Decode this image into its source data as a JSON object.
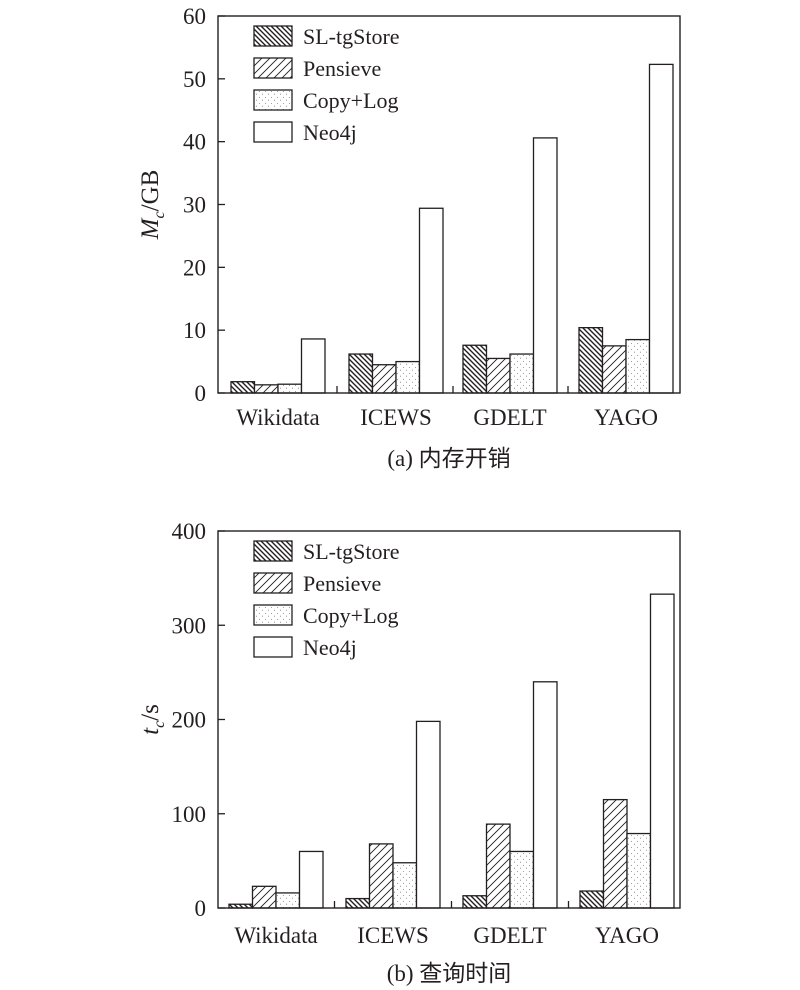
{
  "chart_data": [
    {
      "type": "bar",
      "caption": "(a) 内存开销",
      "ylabel_main": "M",
      "ylabel_sub": "c",
      "ylabel_unit": "/GB",
      "categories": [
        "Wikidata",
        "ICEWS",
        "GDELT",
        "YAGO"
      ],
      "ylim": [
        0,
        60
      ],
      "yticks": [
        0,
        10,
        20,
        30,
        40,
        50,
        60
      ],
      "legend_position": "top-left",
      "series": [
        {
          "name": "SL-tgStore",
          "pattern": "dense-hatch",
          "values": [
            1.8,
            6.2,
            7.6,
            10.4
          ]
        },
        {
          "name": "Pensieve",
          "pattern": "light-hatch",
          "values": [
            1.3,
            4.5,
            5.5,
            7.5
          ]
        },
        {
          "name": "Copy+Log",
          "pattern": "dots",
          "values": [
            1.4,
            5.0,
            6.2,
            8.5
          ]
        },
        {
          "name": "Neo4j",
          "pattern": "plain",
          "values": [
            8.6,
            29.4,
            40.6,
            52.3
          ]
        }
      ]
    },
    {
      "type": "bar",
      "caption": "(b) 查询时间",
      "ylabel_main": "t",
      "ylabel_sub": "c",
      "ylabel_unit": "/s",
      "categories": [
        "Wikidata",
        "ICEWS",
        "GDELT",
        "YAGO"
      ],
      "ylim": [
        0,
        400
      ],
      "yticks": [
        0,
        100,
        200,
        300,
        400
      ],
      "legend_position": "top-left",
      "series": [
        {
          "name": "SL-tgStore",
          "pattern": "dense-hatch",
          "values": [
            4,
            10,
            13,
            18
          ]
        },
        {
          "name": "Pensieve",
          "pattern": "light-hatch",
          "values": [
            23,
            68,
            89,
            115
          ]
        },
        {
          "name": "Copy+Log",
          "pattern": "dots",
          "values": [
            16,
            48,
            60,
            79
          ]
        },
        {
          "name": "Neo4j",
          "pattern": "plain",
          "values": [
            60,
            198,
            240,
            333
          ]
        }
      ]
    }
  ]
}
